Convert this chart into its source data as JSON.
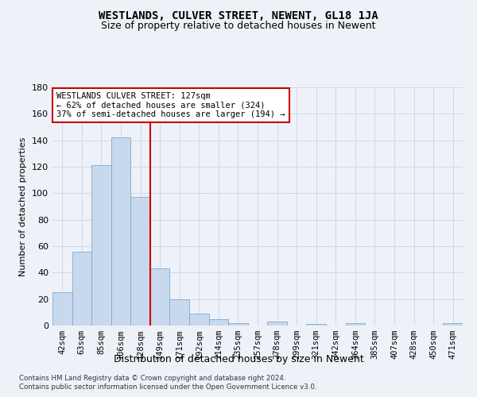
{
  "title": "WESTLANDS, CULVER STREET, NEWENT, GL18 1JA",
  "subtitle": "Size of property relative to detached houses in Newent",
  "xlabel": "Distribution of detached houses by size in Newent",
  "ylabel": "Number of detached properties",
  "footnote1": "Contains HM Land Registry data © Crown copyright and database right 2024.",
  "footnote2": "Contains public sector information licensed under the Open Government Licence v3.0.",
  "categories": [
    "42sqm",
    "63sqm",
    "85sqm",
    "106sqm",
    "128sqm",
    "149sqm",
    "171sqm",
    "192sqm",
    "214sqm",
    "235sqm",
    "257sqm",
    "278sqm",
    "299sqm",
    "321sqm",
    "342sqm",
    "364sqm",
    "385sqm",
    "407sqm",
    "428sqm",
    "450sqm",
    "471sqm"
  ],
  "values": [
    25,
    56,
    121,
    142,
    97,
    43,
    20,
    9,
    5,
    2,
    0,
    3,
    0,
    1,
    0,
    2,
    0,
    0,
    0,
    0,
    2
  ],
  "bar_color": "#c9d9ed",
  "bar_edge_color": "#7aabcf",
  "grid_color": "#d0d8e4",
  "vline_index": 4,
  "vline_color": "#cc0000",
  "annotation_line1": "WESTLANDS CULVER STREET: 127sqm",
  "annotation_line2": "← 62% of detached houses are smaller (324)",
  "annotation_line3": "37% of semi-detached houses are larger (194) →",
  "annotation_box_color": "#ffffff",
  "annotation_box_edge": "#cc0000",
  "ylim": [
    0,
    180
  ],
  "yticks": [
    0,
    20,
    40,
    60,
    80,
    100,
    120,
    140,
    160,
    180
  ],
  "bg_color": "#eef2f8",
  "title_fontsize": 10,
  "subtitle_fontsize": 9,
  "ylabel_fontsize": 8,
  "xlabel_fontsize": 9
}
